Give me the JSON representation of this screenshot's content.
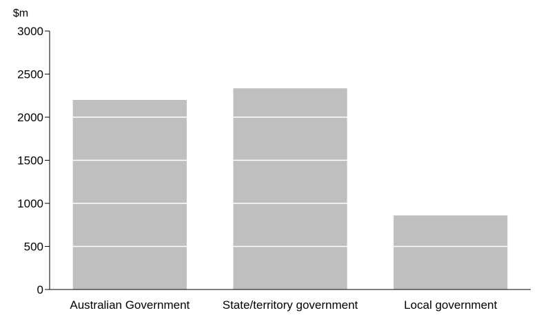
{
  "chart_data": {
    "type": "bar",
    "ylabel": "$m",
    "categories": [
      "Australian Government",
      "State/territory government",
      "Local government"
    ],
    "values": [
      2200,
      2335,
      860
    ],
    "ylim": [
      0,
      3000
    ],
    "yticks": [
      0,
      500,
      1000,
      1500,
      2000,
      2500,
      3000
    ],
    "bar_color": "#bfbfbf",
    "gridline_color": "#ffffff",
    "grid": "white lines drawn over bars only",
    "legend": "none"
  }
}
